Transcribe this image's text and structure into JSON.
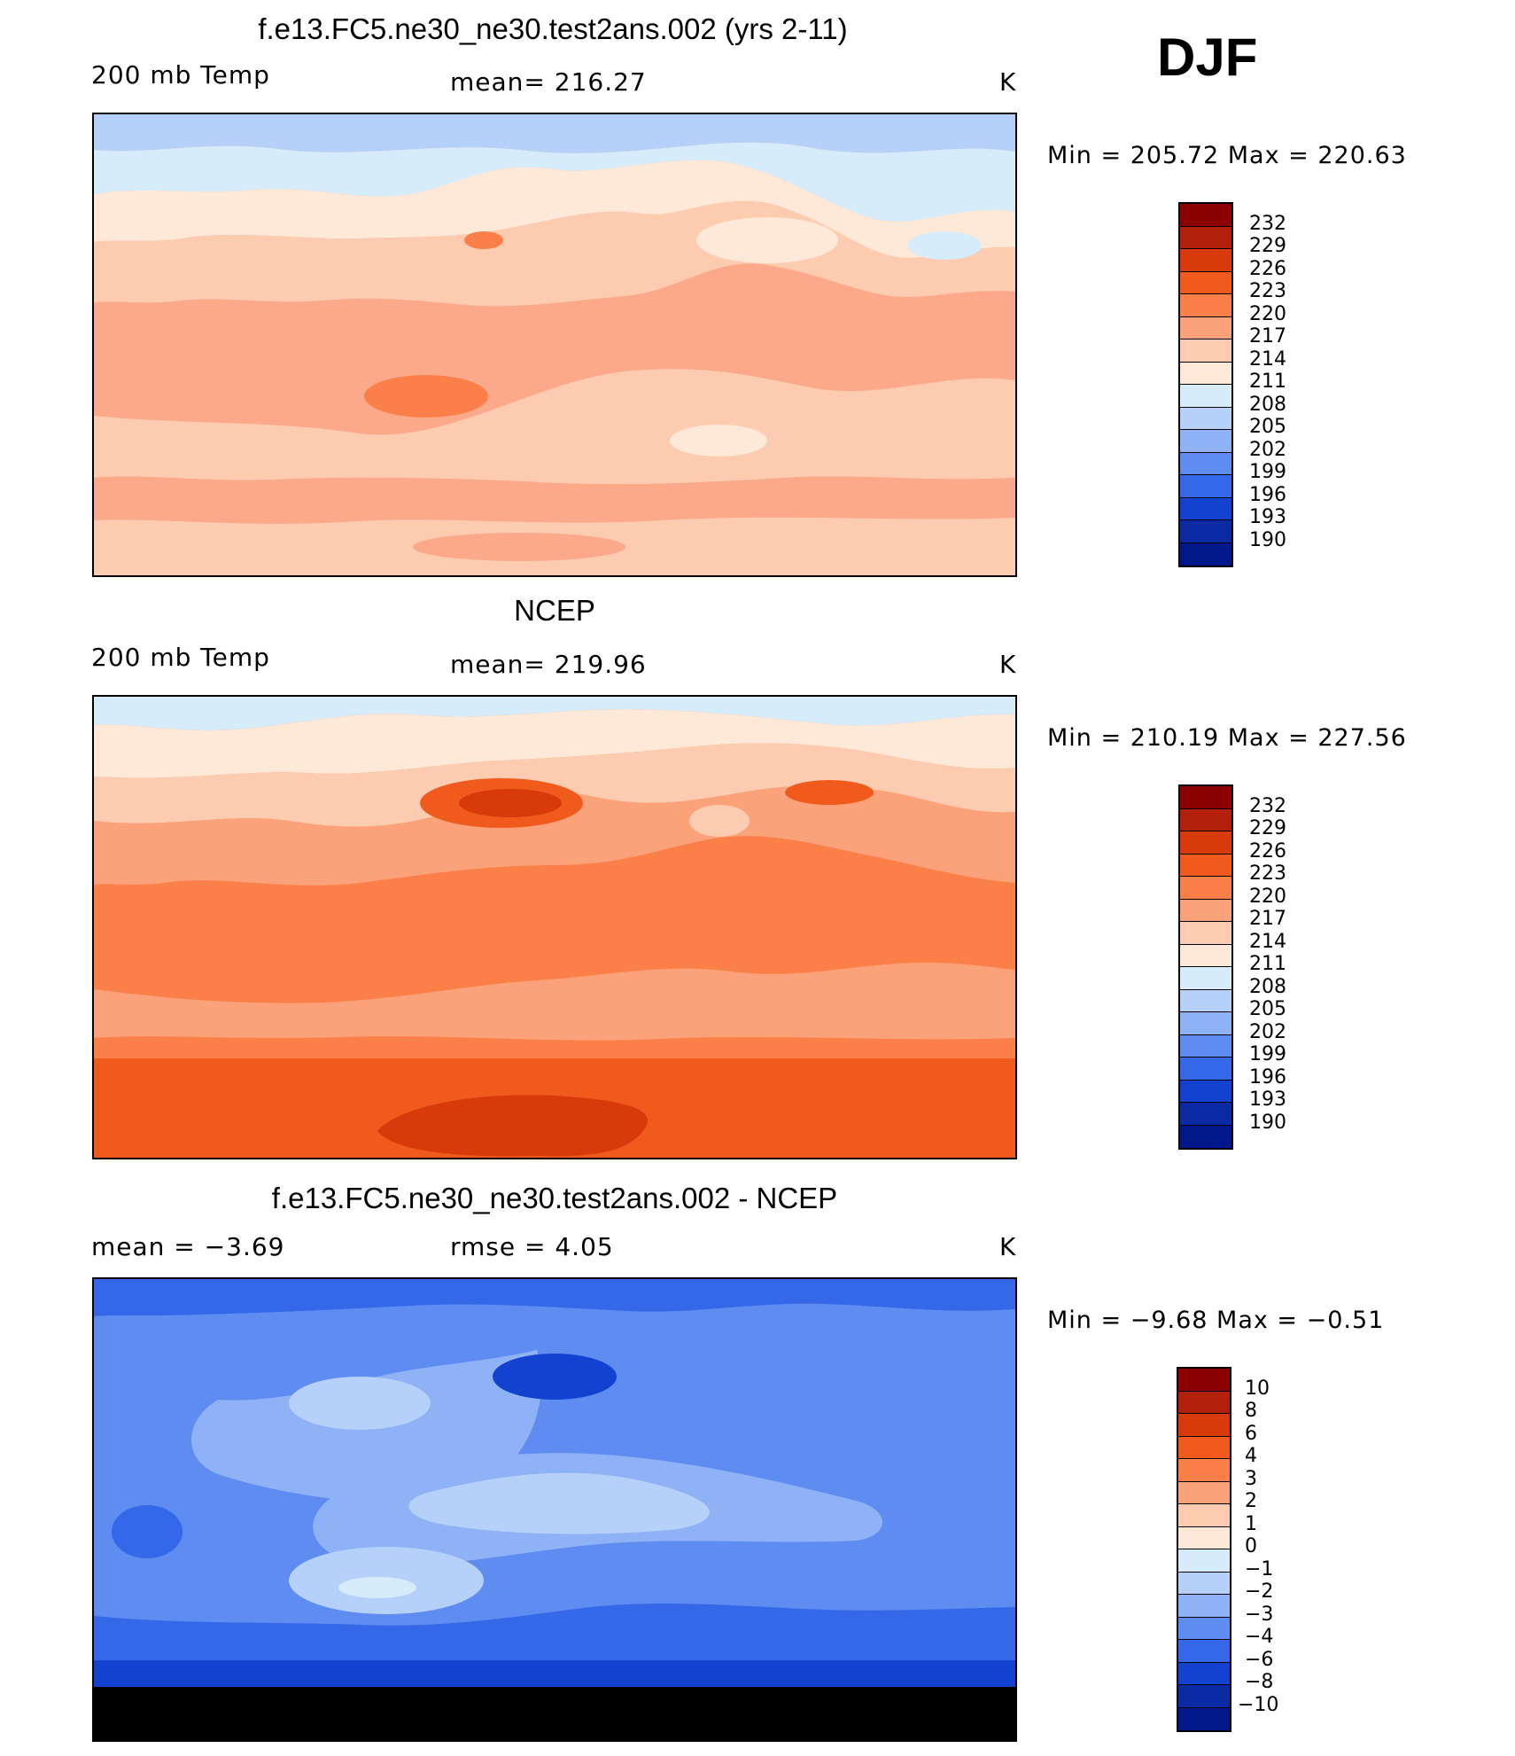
{
  "season": "DJF",
  "panels": [
    {
      "title": "f.e13.FC5.ne30_ne30.test2ans.002 (yrs 2-11)",
      "left_label": "200 mb Temp",
      "center_label": "mean=  216.27",
      "units": "K",
      "minmax": "Min  =  205.72  Max  =  220.63",
      "legend_levels": [
        "232",
        "229",
        "226",
        "223",
        "220",
        "217",
        "214",
        "211",
        "208",
        "205",
        "202",
        "199",
        "196",
        "193",
        "190"
      ],
      "legend_colors": [
        "#8b0000",
        "#b3200b",
        "#d83a0c",
        "#f15a1d",
        "#fb7f48",
        "#fca27b",
        "#fdcbb0",
        "#fee9d9",
        "#d6ecfb",
        "#b5d1fa",
        "#8fb1f6",
        "#5e8cf0",
        "#3468e8",
        "#1442d0",
        "#0a2aa3",
        "#00188a"
      ],
      "field": {
        "base": "#fca88a",
        "bands": [
          {
            "level": "205",
            "color": "#b5d1fa"
          },
          {
            "level": "208",
            "color": "#d6ecfb"
          },
          {
            "level": "211",
            "color": "#fee9d9"
          },
          {
            "level": "214",
            "color": "#fdcbb0"
          },
          {
            "level": "217",
            "color": "#fca88a"
          },
          {
            "level": "220",
            "color": "#fb7f48"
          }
        ]
      }
    },
    {
      "title": "NCEP",
      "left_label": "200 mb Temp",
      "center_label": "mean=  219.96",
      "units": "K",
      "minmax": "Min  =  210.19  Max  =  227.56",
      "legend_levels": [
        "232",
        "229",
        "226",
        "223",
        "220",
        "217",
        "214",
        "211",
        "208",
        "205",
        "202",
        "199",
        "196",
        "193",
        "190"
      ],
      "legend_colors": [
        "#8b0000",
        "#b3200b",
        "#d83a0c",
        "#f15a1d",
        "#fb7f48",
        "#fca27b",
        "#fdcbb0",
        "#fee9d9",
        "#d6ecfb",
        "#b5d1fa",
        "#8fb1f6",
        "#5e8cf0",
        "#3468e8",
        "#1442d0",
        "#0a2aa3",
        "#00188a"
      ],
      "field": {
        "base": "#fb7f48",
        "bands": [
          {
            "level": "208",
            "color": "#d6ecfb"
          },
          {
            "level": "211",
            "color": "#fee9d9"
          },
          {
            "level": "214",
            "color": "#fdcbb0"
          },
          {
            "level": "217",
            "color": "#fca27b"
          },
          {
            "level": "220",
            "color": "#fb7f48"
          },
          {
            "level": "223",
            "color": "#f15a1d"
          },
          {
            "level": "226",
            "color": "#d83a0c"
          }
        ]
      }
    },
    {
      "title": "f.e13.FC5.ne30_ne30.test2ans.002 - NCEP",
      "left_label": "mean  =    −3.69",
      "center_label": "rmse  =      4.05",
      "units": "K",
      "minmax": "Min  =    −9.68  Max  =    −0.51",
      "legend_levels": [
        "10",
        "8",
        "6",
        "4",
        "3",
        "2",
        "1",
        "0",
        "−1",
        "−2",
        "−3",
        "−4",
        "−6",
        "−8",
        "−10"
      ],
      "legend_colors": [
        "#8b0000",
        "#b3200b",
        "#d83a0c",
        "#f15a1d",
        "#fb7f48",
        "#fca27b",
        "#fdcbb0",
        "#fee9d9",
        "#d6ecfb",
        "#b5d1fa",
        "#8fb1f6",
        "#5e8cf0",
        "#3468e8",
        "#1442d0",
        "#0a2aa3",
        "#00188a"
      ],
      "field": {
        "base": "#5e8cf0",
        "bands": [
          {
            "level": "−1",
            "color": "#d6ecfb"
          },
          {
            "level": "−2",
            "color": "#b5d1fa"
          },
          {
            "level": "−3",
            "color": "#8fb1f6"
          },
          {
            "level": "−4",
            "color": "#5e8cf0"
          },
          {
            "level": "−6",
            "color": "#3468e8"
          },
          {
            "level": "−8",
            "color": "#1442d0"
          }
        ]
      }
    }
  ]
}
